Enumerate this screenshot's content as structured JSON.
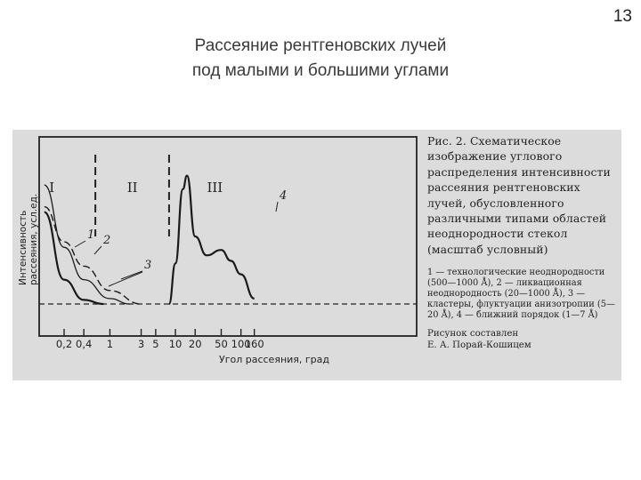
{
  "slide": {
    "number": "13",
    "title_line1": "Рассеяние рентгеновских лучей",
    "title_line2": "под малыми и большими углами"
  },
  "figure": {
    "caption": "Рис. 2. Схематическое изображение углового распределения интенсивности рассеяния рентгеновских лучей, обусловленного различными типами областей неоднородности стекол (масштаб условный)",
    "legend": "1 — технологические неоднородности (500—1000 Å), 2 — ликвационная неоднородность (20—1000 Å), 3 — кластеры, флуктуации анизотропии (5—20 Å), 4 — ближний порядок (1—7 Å)",
    "credit_line1": "Рисунок составлен",
    "credit_line2": "Е. А. Порай-Кошицем"
  },
  "chart_data": {
    "type": "line",
    "xlabel": "Угол рассеяния, град",
    "ylabel": "Интенсивность рассеяния, усл.ед.",
    "x_scale": "log",
    "x_ticks": [
      "0,2",
      "0,4",
      "1",
      "3",
      "5",
      "10",
      "20",
      "50",
      "100",
      "160"
    ],
    "regions": [
      "I",
      "II",
      "III"
    ],
    "region_boundaries_deg": [
      0.6,
      8
    ],
    "curve_labels": [
      "1",
      "2",
      "3",
      "4"
    ],
    "series": [
      {
        "name": "1",
        "x": [
          0.1,
          0.2,
          0.4,
          0.8
        ],
        "y": [
          68,
          18,
          3,
          0
        ]
      },
      {
        "name": "2",
        "x": [
          0.1,
          0.2,
          0.4,
          1,
          2
        ],
        "y": [
          88,
          42,
          18,
          4,
          0
        ]
      },
      {
        "name": "3",
        "x": [
          0.1,
          0.2,
          0.4,
          1,
          3
        ],
        "y": [
          72,
          46,
          28,
          10,
          0
        ]
      },
      {
        "name": "4",
        "x": [
          8,
          10,
          13,
          15,
          20,
          30,
          50,
          70,
          100,
          160
        ],
        "y": [
          0,
          30,
          85,
          95,
          50,
          36,
          40,
          32,
          22,
          4
        ]
      }
    ]
  }
}
